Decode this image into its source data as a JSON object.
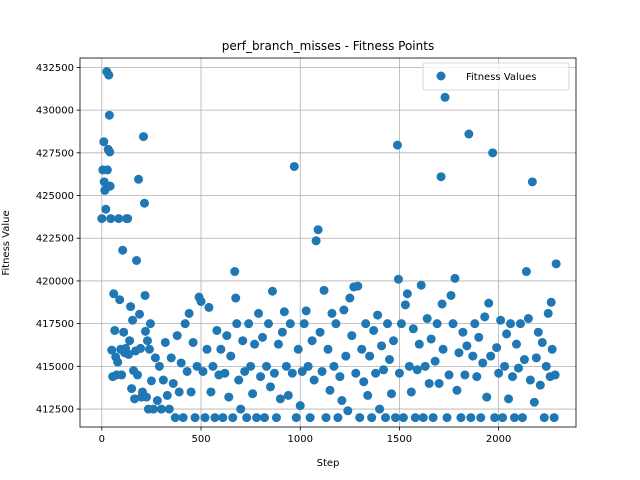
{
  "chart_data": {
    "type": "scatter",
    "title": "perf_branch_misses - Fitness Points",
    "xlabel": "Step",
    "ylabel": "Fitness Value",
    "xlim": [
      -110,
      2390
    ],
    "ylim": [
      411450,
      433050
    ],
    "xticks": [
      0,
      500,
      1000,
      1500,
      2000
    ],
    "xtick_labels": [
      "0",
      "500",
      "1000",
      "1500",
      "2000"
    ],
    "yticks": [
      412500,
      415000,
      417500,
      420000,
      422500,
      425000,
      427500,
      430000,
      432500
    ],
    "ytick_labels": [
      "412500",
      "415000",
      "417500",
      "420000",
      "422500",
      "425000",
      "427500",
      "430000",
      "432500"
    ],
    "grid": true,
    "legend_position": "top-right",
    "series": [
      {
        "name": "Fitness Values",
        "color": "#1f77b4",
        "points": [
          [
            0,
            423650
          ],
          [
            5,
            426500
          ],
          [
            10,
            428150
          ],
          [
            12,
            425800
          ],
          [
            15,
            425300
          ],
          [
            20,
            424200
          ],
          [
            25,
            432250
          ],
          [
            28,
            426500
          ],
          [
            30,
            425500
          ],
          [
            32,
            427700
          ],
          [
            35,
            432050
          ],
          [
            38,
            429700
          ],
          [
            40,
            427550
          ],
          [
            42,
            425550
          ],
          [
            45,
            423650
          ],
          [
            50,
            415950
          ],
          [
            55,
            414400
          ],
          [
            60,
            419250
          ],
          [
            65,
            417100
          ],
          [
            70,
            415550
          ],
          [
            75,
            414500
          ],
          [
            80,
            415250
          ],
          [
            85,
            423650
          ],
          [
            90,
            418900
          ],
          [
            95,
            416000
          ],
          [
            100,
            414500
          ],
          [
            105,
            421800
          ],
          [
            110,
            417000
          ],
          [
            115,
            415800
          ],
          [
            120,
            416050
          ],
          [
            125,
            423650
          ],
          [
            130,
            423650
          ],
          [
            135,
            415700
          ],
          [
            140,
            416500
          ],
          [
            145,
            418500
          ],
          [
            150,
            413700
          ],
          [
            155,
            417700
          ],
          [
            160,
            414750
          ],
          [
            165,
            413100
          ],
          [
            170,
            415900
          ],
          [
            175,
            421200
          ],
          [
            180,
            414500
          ],
          [
            185,
            425950
          ],
          [
            190,
            418050
          ],
          [
            195,
            416050
          ],
          [
            200,
            413200
          ],
          [
            205,
            413500
          ],
          [
            210,
            428450
          ],
          [
            215,
            424550
          ],
          [
            218,
            419150
          ],
          [
            220,
            417050
          ],
          [
            225,
            413200
          ],
          [
            230,
            416500
          ],
          [
            235,
            412500
          ],
          [
            240,
            416000
          ],
          [
            245,
            417500
          ],
          [
            250,
            414150
          ],
          [
            260,
            412500
          ],
          [
            270,
            415500
          ],
          [
            280,
            413000
          ],
          [
            290,
            415000
          ],
          [
            300,
            412500
          ],
          [
            310,
            414200
          ],
          [
            320,
            416400
          ],
          [
            330,
            413300
          ],
          [
            340,
            412500
          ],
          [
            350,
            415500
          ],
          [
            360,
            414000
          ],
          [
            370,
            412000
          ],
          [
            380,
            416800
          ],
          [
            390,
            413500
          ],
          [
            400,
            415200
          ],
          [
            410,
            412000
          ],
          [
            420,
            417500
          ],
          [
            430,
            414700
          ],
          [
            440,
            418100
          ],
          [
            450,
            413500
          ],
          [
            460,
            416400
          ],
          [
            470,
            412000
          ],
          [
            480,
            415000
          ],
          [
            490,
            419050
          ],
          [
            500,
            418800
          ],
          [
            510,
            414700
          ],
          [
            520,
            412000
          ],
          [
            530,
            416000
          ],
          [
            540,
            418450
          ],
          [
            550,
            413500
          ],
          [
            560,
            415000
          ],
          [
            570,
            412000
          ],
          [
            580,
            417100
          ],
          [
            590,
            414500
          ],
          [
            600,
            416000
          ],
          [
            610,
            412000
          ],
          [
            620,
            414600
          ],
          [
            630,
            416800
          ],
          [
            640,
            413200
          ],
          [
            650,
            415600
          ],
          [
            660,
            412000
          ],
          [
            670,
            420550
          ],
          [
            675,
            419000
          ],
          [
            680,
            417500
          ],
          [
            690,
            414200
          ],
          [
            700,
            412500
          ],
          [
            710,
            416500
          ],
          [
            720,
            414700
          ],
          [
            730,
            412000
          ],
          [
            740,
            417500
          ],
          [
            750,
            415000
          ],
          [
            760,
            413400
          ],
          [
            770,
            416300
          ],
          [
            780,
            412000
          ],
          [
            790,
            418100
          ],
          [
            800,
            414400
          ],
          [
            810,
            416700
          ],
          [
            820,
            412000
          ],
          [
            830,
            415000
          ],
          [
            840,
            417500
          ],
          [
            850,
            413800
          ],
          [
            860,
            419400
          ],
          [
            870,
            414600
          ],
          [
            880,
            412000
          ],
          [
            890,
            416300
          ],
          [
            900,
            413100
          ],
          [
            910,
            417000
          ],
          [
            920,
            418200
          ],
          [
            930,
            415000
          ],
          [
            940,
            413300
          ],
          [
            950,
            417500
          ],
          [
            960,
            414600
          ],
          [
            970,
            426700
          ],
          [
            980,
            412000
          ],
          [
            990,
            416000
          ],
          [
            1000,
            412700
          ],
          [
            1010,
            414700
          ],
          [
            1020,
            417500
          ],
          [
            1030,
            418250
          ],
          [
            1040,
            415000
          ],
          [
            1050,
            412000
          ],
          [
            1060,
            416500
          ],
          [
            1070,
            414200
          ],
          [
            1080,
            422350
          ],
          [
            1090,
            423000
          ],
          [
            1100,
            417000
          ],
          [
            1110,
            414700
          ],
          [
            1120,
            419450
          ],
          [
            1130,
            412000
          ],
          [
            1140,
            416000
          ],
          [
            1150,
            413600
          ],
          [
            1160,
            418100
          ],
          [
            1170,
            415000
          ],
          [
            1180,
            417500
          ],
          [
            1190,
            412000
          ],
          [
            1200,
            414400
          ],
          [
            1210,
            413000
          ],
          [
            1220,
            418300
          ],
          [
            1230,
            415600
          ],
          [
            1240,
            412400
          ],
          [
            1250,
            419000
          ],
          [
            1260,
            416800
          ],
          [
            1270,
            419650
          ],
          [
            1280,
            414600
          ],
          [
            1290,
            419700
          ],
          [
            1300,
            412000
          ],
          [
            1310,
            416000
          ],
          [
            1320,
            414100
          ],
          [
            1330,
            417500
          ],
          [
            1340,
            413300
          ],
          [
            1350,
            415600
          ],
          [
            1360,
            412000
          ],
          [
            1370,
            417100
          ],
          [
            1380,
            414600
          ],
          [
            1390,
            418000
          ],
          [
            1400,
            412500
          ],
          [
            1410,
            416200
          ],
          [
            1420,
            414800
          ],
          [
            1430,
            412000
          ],
          [
            1440,
            417500
          ],
          [
            1450,
            415400
          ],
          [
            1460,
            413400
          ],
          [
            1470,
            416500
          ],
          [
            1480,
            412000
          ],
          [
            1490,
            427950
          ],
          [
            1495,
            420100
          ],
          [
            1500,
            414600
          ],
          [
            1510,
            417500
          ],
          [
            1520,
            412000
          ],
          [
            1530,
            418600
          ],
          [
            1540,
            419250
          ],
          [
            1550,
            415000
          ],
          [
            1560,
            413500
          ],
          [
            1570,
            417200
          ],
          [
            1580,
            412000
          ],
          [
            1590,
            414800
          ],
          [
            1600,
            416300
          ],
          [
            1610,
            419750
          ],
          [
            1620,
            412000
          ],
          [
            1630,
            415000
          ],
          [
            1640,
            417800
          ],
          [
            1650,
            414000
          ],
          [
            1660,
            416600
          ],
          [
            1670,
            412000
          ],
          [
            1680,
            415300
          ],
          [
            1690,
            417500
          ],
          [
            1700,
            414000
          ],
          [
            1710,
            426100
          ],
          [
            1715,
            418650
          ],
          [
            1720,
            416000
          ],
          [
            1730,
            430750
          ],
          [
            1740,
            412000
          ],
          [
            1750,
            414500
          ],
          [
            1760,
            419150
          ],
          [
            1770,
            417500
          ],
          [
            1780,
            420150
          ],
          [
            1790,
            413600
          ],
          [
            1800,
            415800
          ],
          [
            1810,
            412000
          ],
          [
            1820,
            417000
          ],
          [
            1830,
            414500
          ],
          [
            1840,
            416200
          ],
          [
            1850,
            428600
          ],
          [
            1860,
            412000
          ],
          [
            1870,
            415600
          ],
          [
            1880,
            417500
          ],
          [
            1890,
            414400
          ],
          [
            1900,
            416700
          ],
          [
            1910,
            412000
          ],
          [
            1920,
            415200
          ],
          [
            1930,
            417900
          ],
          [
            1940,
            413200
          ],
          [
            1950,
            418700
          ],
          [
            1960,
            415600
          ],
          [
            1970,
            427500
          ],
          [
            1980,
            412000
          ],
          [
            1990,
            416100
          ],
          [
            2000,
            414600
          ],
          [
            2010,
            417700
          ],
          [
            2020,
            412000
          ],
          [
            2030,
            415000
          ],
          [
            2040,
            416900
          ],
          [
            2050,
            413100
          ],
          [
            2060,
            417500
          ],
          [
            2070,
            414400
          ],
          [
            2080,
            412000
          ],
          [
            2090,
            416300
          ],
          [
            2100,
            414900
          ],
          [
            2110,
            417500
          ],
          [
            2120,
            412000
          ],
          [
            2130,
            415400
          ],
          [
            2140,
            420550
          ],
          [
            2150,
            417800
          ],
          [
            2160,
            414200
          ],
          [
            2170,
            425800
          ],
          [
            2180,
            412900
          ],
          [
            2190,
            415500
          ],
          [
            2200,
            417000
          ],
          [
            2210,
            413900
          ],
          [
            2220,
            416400
          ],
          [
            2230,
            412000
          ],
          [
            2240,
            415000
          ],
          [
            2250,
            418100
          ],
          [
            2260,
            414400
          ],
          [
            2265,
            418750
          ],
          [
            2270,
            416000
          ],
          [
            2280,
            412000
          ],
          [
            2285,
            414500
          ],
          [
            2290,
            421000
          ]
        ]
      }
    ]
  }
}
